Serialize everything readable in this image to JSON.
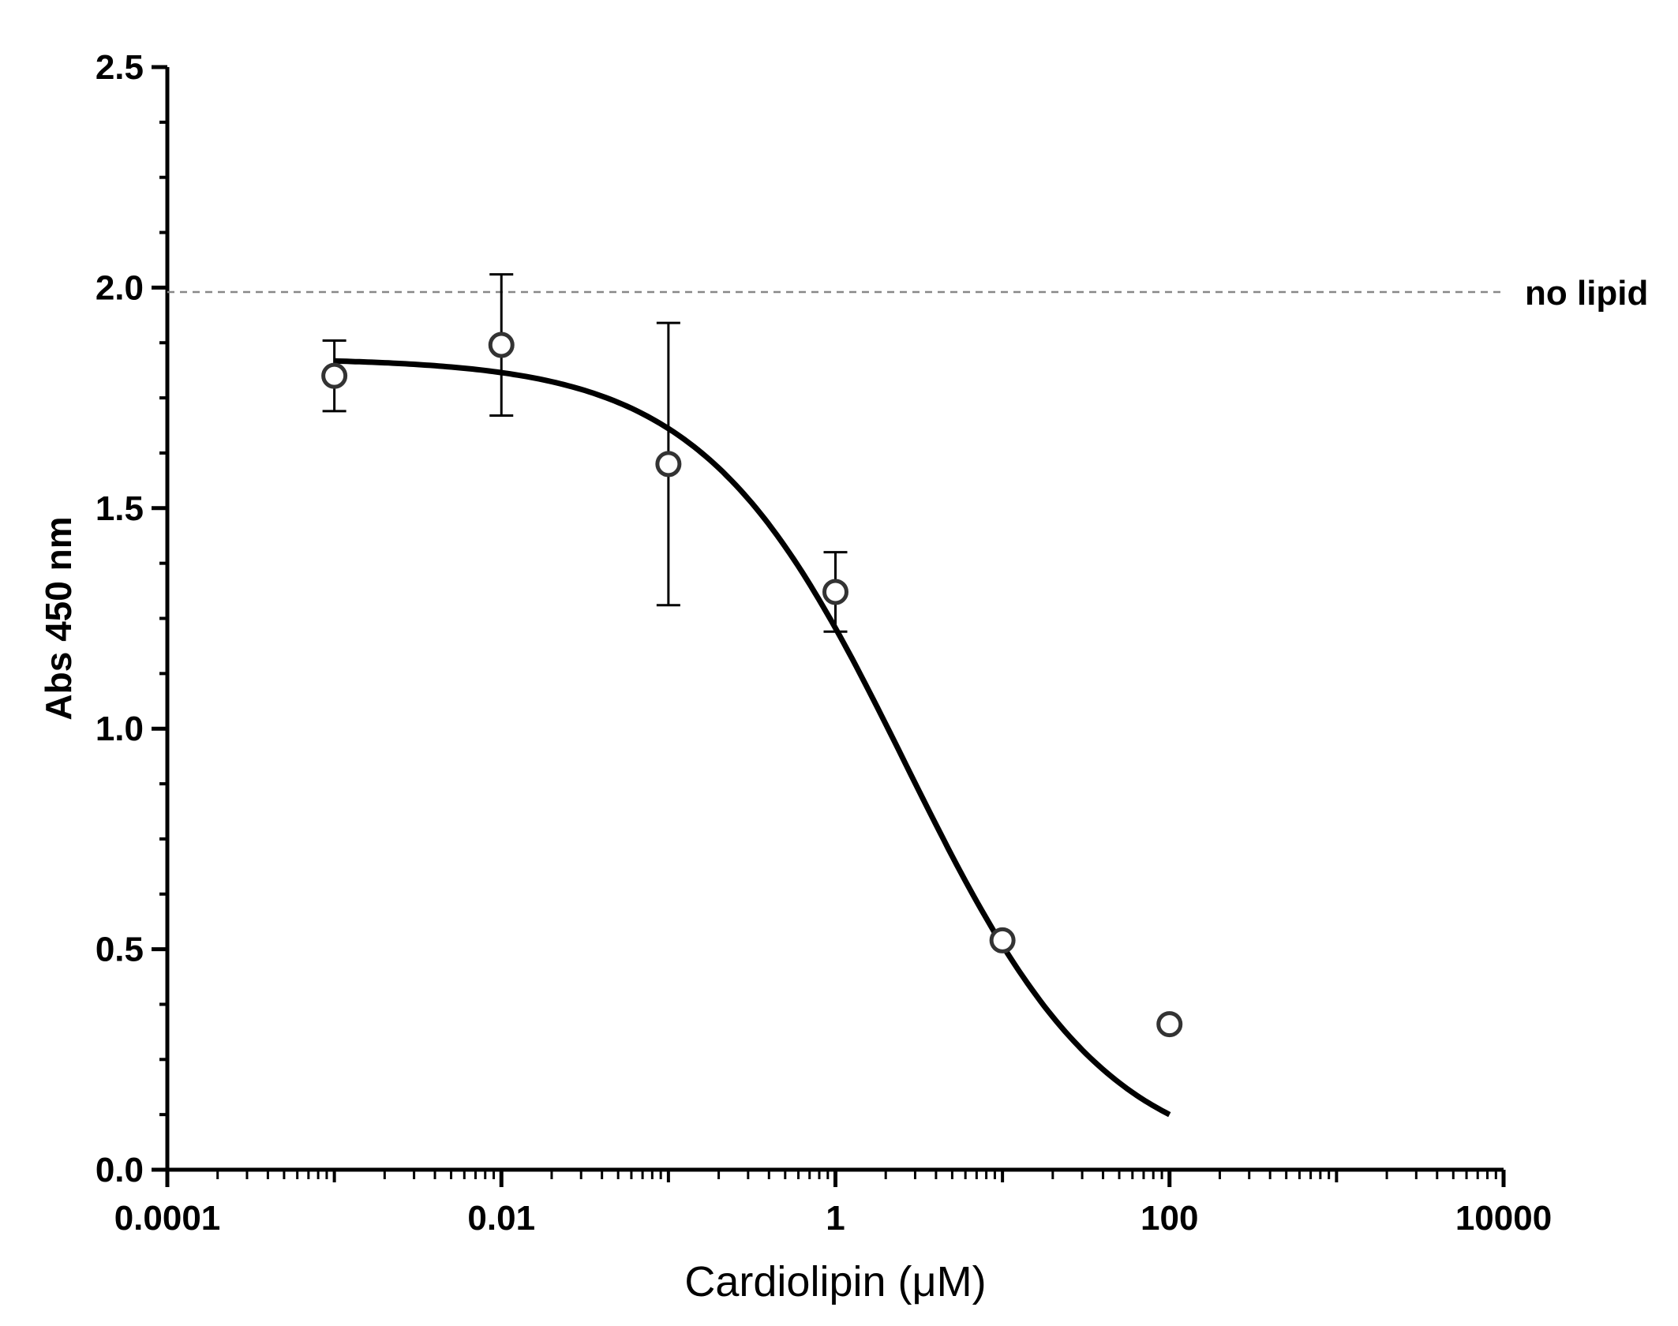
{
  "chart_data": {
    "type": "scatter",
    "title": "",
    "xlabel": "Cardiolipin (μM)",
    "ylabel": "Abs 450 nm",
    "x_scale": "log",
    "xlim": [
      0.0001,
      10000
    ],
    "ylim": [
      0,
      2.5
    ],
    "x_ticks": [
      "0.0001",
      "0.01",
      "1",
      "100",
      "10000"
    ],
    "y_ticks": [
      "0.0",
      "0.5",
      "1.0",
      "1.5",
      "2.0",
      "2.5"
    ],
    "grid": false,
    "series": [
      {
        "points": [
          {
            "x": 0.001,
            "y": 1.8,
            "err_low": 1.72,
            "err_high": 1.88
          },
          {
            "x": 0.01,
            "y": 1.87,
            "err_low": 1.71,
            "err_high": 2.03
          },
          {
            "x": 0.1,
            "y": 1.6,
            "err_low": 1.28,
            "err_high": 1.92
          },
          {
            "x": 1,
            "y": 1.31,
            "err_low": 1.22,
            "err_high": 1.4
          },
          {
            "x": 10,
            "y": 0.52
          },
          {
            "x": 100,
            "y": 0.33
          }
        ]
      }
    ],
    "fit_curve": {
      "type": "sigmoid",
      "top": 1.84,
      "bottom": 0.0,
      "log_ic50": 0.42,
      "hill_slope": -0.72,
      "x_from": 0.001,
      "x_to": 100
    },
    "reference_line": {
      "y": 1.99,
      "label": "no lipid",
      "style": "dashed",
      "color": "#888888"
    }
  }
}
